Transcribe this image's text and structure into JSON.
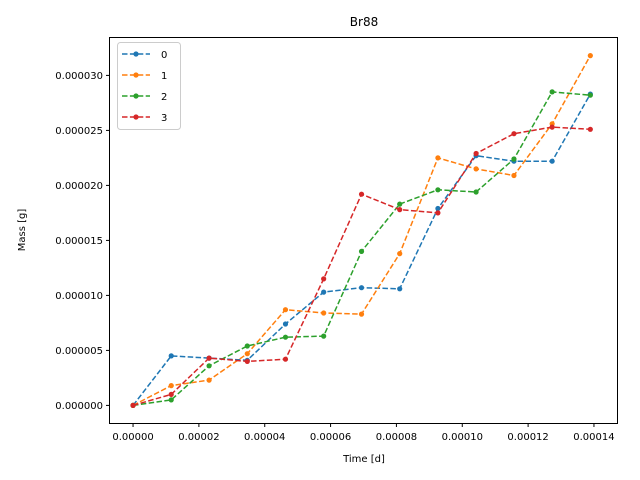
{
  "chart_data": {
    "type": "line",
    "title": "Br88",
    "xlabel": "Time [d]",
    "ylabel": "Mass [g]",
    "xlim": [
      -7e-06,
      0.000147
    ],
    "ylim": [
      -1.6e-06,
      3.34e-05
    ],
    "x_ticks": [
      0,
      2e-05,
      4e-05,
      6e-05,
      8e-05,
      0.0001,
      0.00012,
      0.00014
    ],
    "x_tick_labels": [
      "0.00000",
      "0.00002",
      "0.00004",
      "0.00006",
      "0.00008",
      "0.00010",
      "0.00012",
      "0.00014"
    ],
    "y_ticks": [
      0,
      5e-06,
      1e-05,
      1.5e-05,
      2e-05,
      2.5e-05,
      3e-05
    ],
    "y_tick_labels": [
      "0.000000",
      "0.000005",
      "0.000010",
      "0.000015",
      "0.000020",
      "0.000025",
      "0.000030"
    ],
    "legend_position": "top-left",
    "grid": false,
    "x": [
      0,
      1.16e-05,
      2.31e-05,
      3.47e-05,
      4.63e-05,
      5.79e-05,
      6.94e-05,
      8.1e-05,
      9.26e-05,
      0.0001042,
      0.0001157,
      0.0001273,
      0.0001389
    ],
    "series": [
      {
        "name": "0",
        "color": "#1f77b4",
        "values": [
          0,
          4.5e-06,
          4.3e-06,
          4.1e-06,
          7.4e-06,
          1.03e-05,
          1.07e-05,
          1.06e-05,
          1.79e-05,
          2.27e-05,
          2.22e-05,
          2.22e-05,
          2.83e-05
        ]
      },
      {
        "name": "1",
        "color": "#ff7f0e",
        "values": [
          0,
          1.8e-06,
          2.3e-06,
          4.7e-06,
          8.7e-06,
          8.4e-06,
          8.3e-06,
          1.38e-05,
          2.25e-05,
          2.15e-05,
          2.09e-05,
          2.56e-05,
          3.18e-05
        ]
      },
      {
        "name": "2",
        "color": "#2ca02c",
        "values": [
          0,
          5e-07,
          3.6e-06,
          5.4e-06,
          6.2e-06,
          6.3e-06,
          1.4e-05,
          1.83e-05,
          1.96e-05,
          1.94e-05,
          2.24e-05,
          2.85e-05,
          2.82e-05
        ]
      },
      {
        "name": "3",
        "color": "#d62728",
        "values": [
          0,
          1e-06,
          4.3e-06,
          4e-06,
          4.2e-06,
          1.15e-05,
          1.92e-05,
          1.78e-05,
          1.75e-05,
          2.29e-05,
          2.47e-05,
          2.53e-05,
          2.51e-05
        ]
      }
    ]
  }
}
